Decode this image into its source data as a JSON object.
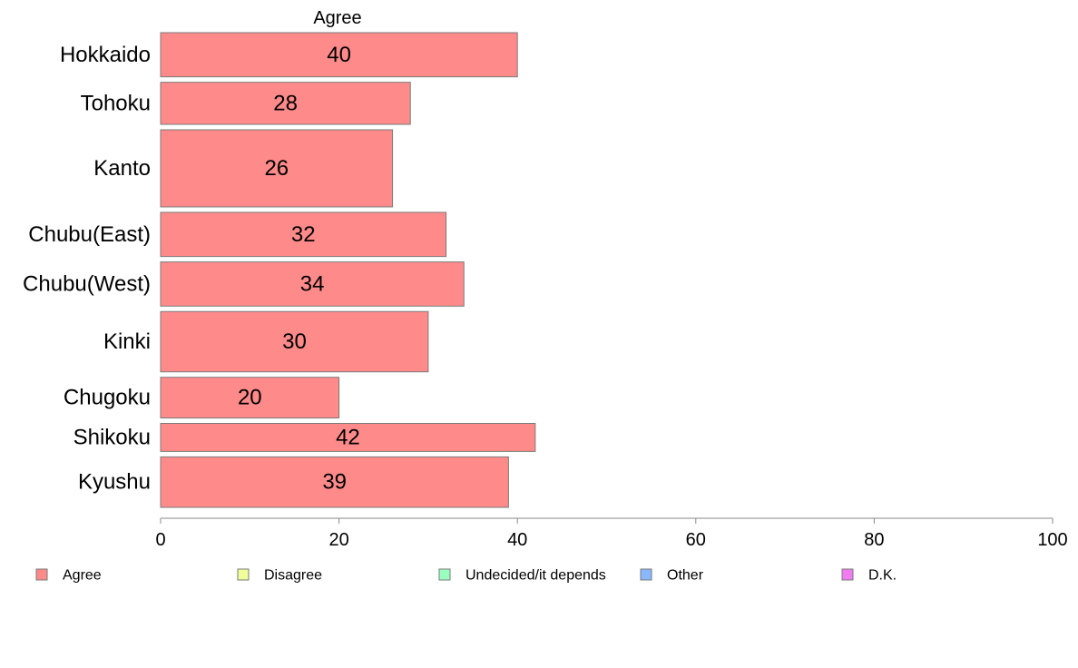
{
  "chart_data": {
    "type": "bar",
    "orientation": "horizontal",
    "title": "Agree",
    "categories": [
      "Hokkaido",
      "Tohoku",
      "Kanto",
      "Chubu(East)",
      "Chubu(West)",
      "Kinki",
      "Chugoku",
      "Shikoku",
      "Kyushu"
    ],
    "series": [
      {
        "name": "Agree",
        "values": [
          40,
          28,
          26,
          32,
          34,
          30,
          20,
          42,
          39
        ]
      }
    ],
    "data_labels": [
      "40",
      "28",
      "26",
      "32",
      "34",
      "30",
      "20",
      "42",
      "39"
    ],
    "xlim": [
      0,
      100
    ],
    "xticks": [
      0,
      20,
      40,
      60,
      80,
      100
    ],
    "tick_labels": [
      "0",
      "20",
      "40",
      "60",
      "80",
      "100"
    ],
    "relative_widths": [
      0.063,
      0.06,
      0.11,
      0.063,
      0.063,
      0.086,
      0.058,
      0.04,
      0.072
    ],
    "legend": {
      "position": "bottom",
      "entries": [
        {
          "label": "Agree",
          "color": "#ff8a8a"
        },
        {
          "label": "Disagree",
          "color": "#f0ff99"
        },
        {
          "label": "Undecided/it depends",
          "color": "#99ffbf"
        },
        {
          "label": "Other",
          "color": "#8ab8ff"
        },
        {
          "label": "D.K.",
          "color": "#f07cf0"
        }
      ]
    },
    "colors": {
      "bar": "#ff8a8a",
      "bar_stroke": "#7a7a7a",
      "axis": "#888888"
    }
  }
}
